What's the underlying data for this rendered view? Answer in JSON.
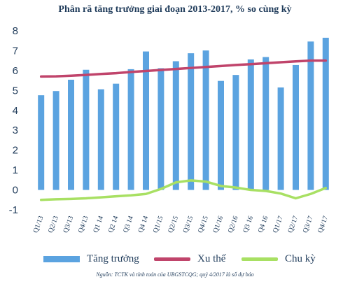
{
  "chart_data": {
    "type": "bar",
    "title": "Phân rã tăng trưởng giai đoạn 2013-2017, % so cùng kỳ",
    "categories": [
      "Q1/13",
      "Q2/13",
      "Q3/13",
      "Q4/13",
      "Q1 14",
      "Q2 14",
      "Q3 14",
      "Q4 14",
      "Q1/15",
      "Q2/15",
      "Q3/15",
      "Q4/15",
      "Q1/16",
      "Q2/16",
      "Q3 16",
      "Q4 16",
      "Q1/17",
      "Q2/17",
      "Q3/17",
      "Q4/17"
    ],
    "ylim": [
      -1,
      8
    ],
    "yticks": [
      -1,
      0,
      1,
      2,
      3,
      4,
      5,
      6,
      7,
      8
    ],
    "series": [
      {
        "name": "Tăng trưởng",
        "type": "bar",
        "color": "#5ba3e0",
        "values": [
          4.76,
          4.97,
          5.54,
          6.04,
          5.06,
          5.34,
          6.07,
          6.96,
          6.12,
          6.47,
          6.87,
          7.01,
          5.48,
          5.78,
          6.56,
          6.68,
          5.15,
          6.28,
          7.46,
          7.65
        ]
      },
      {
        "name": "Xu thế",
        "type": "line",
        "color": "#c0446b",
        "values": [
          5.7,
          5.71,
          5.74,
          5.78,
          5.83,
          5.87,
          5.93,
          5.98,
          6.03,
          6.08,
          6.13,
          6.18,
          6.23,
          6.28,
          6.32,
          6.37,
          6.42,
          6.46,
          6.5,
          6.5
        ]
      },
      {
        "name": "Chu kỳ",
        "type": "line",
        "color": "#a8e063",
        "values": [
          -0.5,
          -0.47,
          -0.45,
          -0.42,
          -0.37,
          -0.32,
          -0.27,
          -0.2,
          0.05,
          0.38,
          0.48,
          0.42,
          0.2,
          0.12,
          0.0,
          -0.05,
          -0.18,
          -0.42,
          -0.2,
          0.1
        ]
      }
    ]
  },
  "source_note": "Nguồn: TCTK và tính toán của UBGSTCQG; quý 4/2017 là số dự báo"
}
